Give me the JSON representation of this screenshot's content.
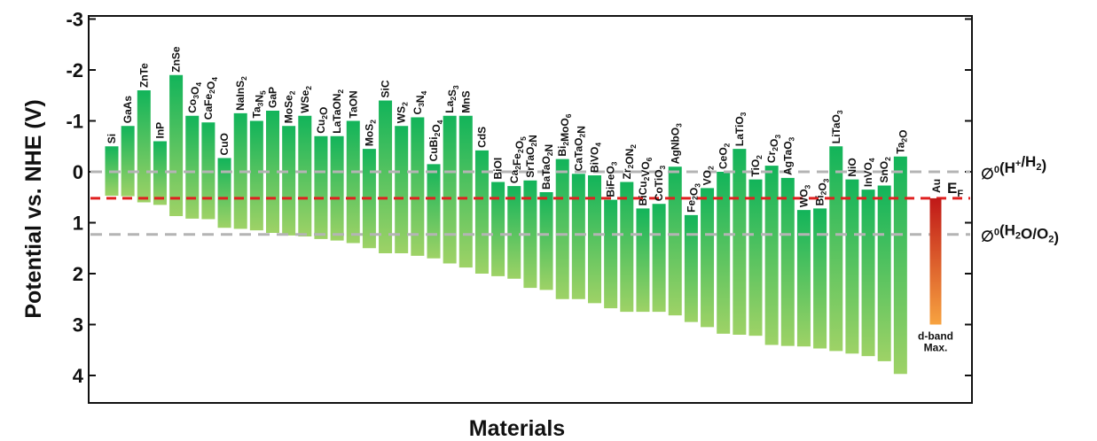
{
  "chart_data": {
    "type": "bar",
    "subtype": "floating-range",
    "ylabel": "Potential vs. NHE (V)",
    "xlabel": "Materials",
    "ylim": [
      -3,
      4.5
    ],
    "y_inverted": true,
    "yticks": [
      "-3",
      "-2",
      "-1",
      "0",
      "1",
      "2",
      "3",
      "4"
    ],
    "grid": false,
    "colors": {
      "bar_top": "#12b45a",
      "bar_bottom": "#9ed266",
      "ref_line": "#b4b4b4",
      "fermi_line": "#e02020",
      "dband_top": "#c01818",
      "dband_bottom": "#f7a340"
    },
    "materials": [
      {
        "name": "Si",
        "cb": -0.5,
        "vb": 0.47
      },
      {
        "name": "GaAs",
        "cb": -0.9,
        "vb": 0.48
      },
      {
        "name": "ZnTe",
        "cb": -1.6,
        "vb": 0.6
      },
      {
        "name": "InP",
        "cb": -0.6,
        "vb": 0.65
      },
      {
        "name": "ZnSe",
        "cb": -1.9,
        "vb": 0.87
      },
      {
        "name": "Co3O4",
        "cb": -1.1,
        "vb": 0.92
      },
      {
        "name": "CaFe2O4",
        "cb": -0.97,
        "vb": 0.93
      },
      {
        "name": "CuO",
        "cb": -0.27,
        "vb": 1.1
      },
      {
        "name": "NaInS2",
        "cb": -1.15,
        "vb": 1.12
      },
      {
        "name": "Ta3N5",
        "cb": -1.0,
        "vb": 1.15
      },
      {
        "name": "GaP",
        "cb": -1.2,
        "vb": 1.2
      },
      {
        "name": "MoSe2",
        "cb": -0.9,
        "vb": 1.25
      },
      {
        "name": "WSe2",
        "cb": -1.1,
        "vb": 1.27
      },
      {
        "name": "Cu2O",
        "cb": -0.7,
        "vb": 1.32
      },
      {
        "name": "LaTaON2",
        "cb": -0.7,
        "vb": 1.35
      },
      {
        "name": "TaON",
        "cb": -1.0,
        "vb": 1.4
      },
      {
        "name": "MoS2",
        "cb": -0.45,
        "vb": 1.5
      },
      {
        "name": "SiC",
        "cb": -1.4,
        "vb": 1.6
      },
      {
        "name": "WS2",
        "cb": -0.9,
        "vb": 1.6
      },
      {
        "name": "C3N4",
        "cb": -1.07,
        "vb": 1.65
      },
      {
        "name": "CuBi2O4",
        "cb": -0.15,
        "vb": 1.7
      },
      {
        "name": "La2S3",
        "cb": -1.1,
        "vb": 1.8
      },
      {
        "name": "MnS",
        "cb": -1.1,
        "vb": 1.88
      },
      {
        "name": "CdS",
        "cb": -0.42,
        "vb": 2.0
      },
      {
        "name": "BiOI",
        "cb": 0.2,
        "vb": 2.05
      },
      {
        "name": "Ca2Fe2O5",
        "cb": 0.28,
        "vb": 2.1
      },
      {
        "name": "SrTaO2N",
        "cb": 0.17,
        "vb": 2.28
      },
      {
        "name": "BaTaO2N",
        "cb": 0.4,
        "vb": 2.32
      },
      {
        "name": "Bi2MoO6",
        "cb": -0.25,
        "vb": 2.5
      },
      {
        "name": "CaTaO2N",
        "cb": 0.04,
        "vb": 2.5
      },
      {
        "name": "BiVO4",
        "cb": 0.07,
        "vb": 2.58
      },
      {
        "name": "BiFeO3",
        "cb": 0.55,
        "vb": 2.68
      },
      {
        "name": "Zr2ON2",
        "cb": 0.2,
        "vb": 2.75
      },
      {
        "name": "BiCu2VO6",
        "cb": 0.72,
        "vb": 2.75
      },
      {
        "name": "CoTiO3",
        "cb": 0.63,
        "vb": 2.75
      },
      {
        "name": "AgNbO3",
        "cb": -0.1,
        "vb": 2.82
      },
      {
        "name": "Fe2O3",
        "cb": 0.85,
        "vb": 2.95
      },
      {
        "name": "VO2",
        "cb": 0.32,
        "vb": 3.05
      },
      {
        "name": "CeO2",
        "cb": 0.0,
        "vb": 3.18
      },
      {
        "name": "LaTiO3",
        "cb": -0.45,
        "vb": 3.2
      },
      {
        "name": "TiO2",
        "cb": 0.15,
        "vb": 3.22
      },
      {
        "name": "Cr2O3",
        "cb": -0.12,
        "vb": 3.4
      },
      {
        "name": "AgTaO3",
        "cb": 0.12,
        "vb": 3.42
      },
      {
        "name": "WO3",
        "cb": 0.75,
        "vb": 3.43
      },
      {
        "name": "Bi2O3",
        "cb": 0.72,
        "vb": 3.47
      },
      {
        "name": "LiTaO3",
        "cb": -0.5,
        "vb": 3.52
      },
      {
        "name": "NiO",
        "cb": 0.15,
        "vb": 3.57
      },
      {
        "name": "InVO4",
        "cb": 0.35,
        "vb": 3.62
      },
      {
        "name": "SnO2",
        "cb": 0.27,
        "vb": 3.72
      },
      {
        "name": "Ta2O",
        "cb": -0.3,
        "vb": 3.97
      }
    ],
    "reference_lines": [
      {
        "label": "(H+/H2)",
        "value": 0.0,
        "style": "dashed-gray"
      },
      {
        "label": "(H2O/O2)",
        "value": 1.23,
        "style": "dashed-gray"
      },
      {
        "label": "EF",
        "value": 0.52,
        "style": "dashed-red"
      }
    ],
    "au_bar": {
      "label": "Au",
      "top": 0.52,
      "bottom": 3.0,
      "caption_line1": "d-band",
      "caption_line2": "Max."
    }
  }
}
